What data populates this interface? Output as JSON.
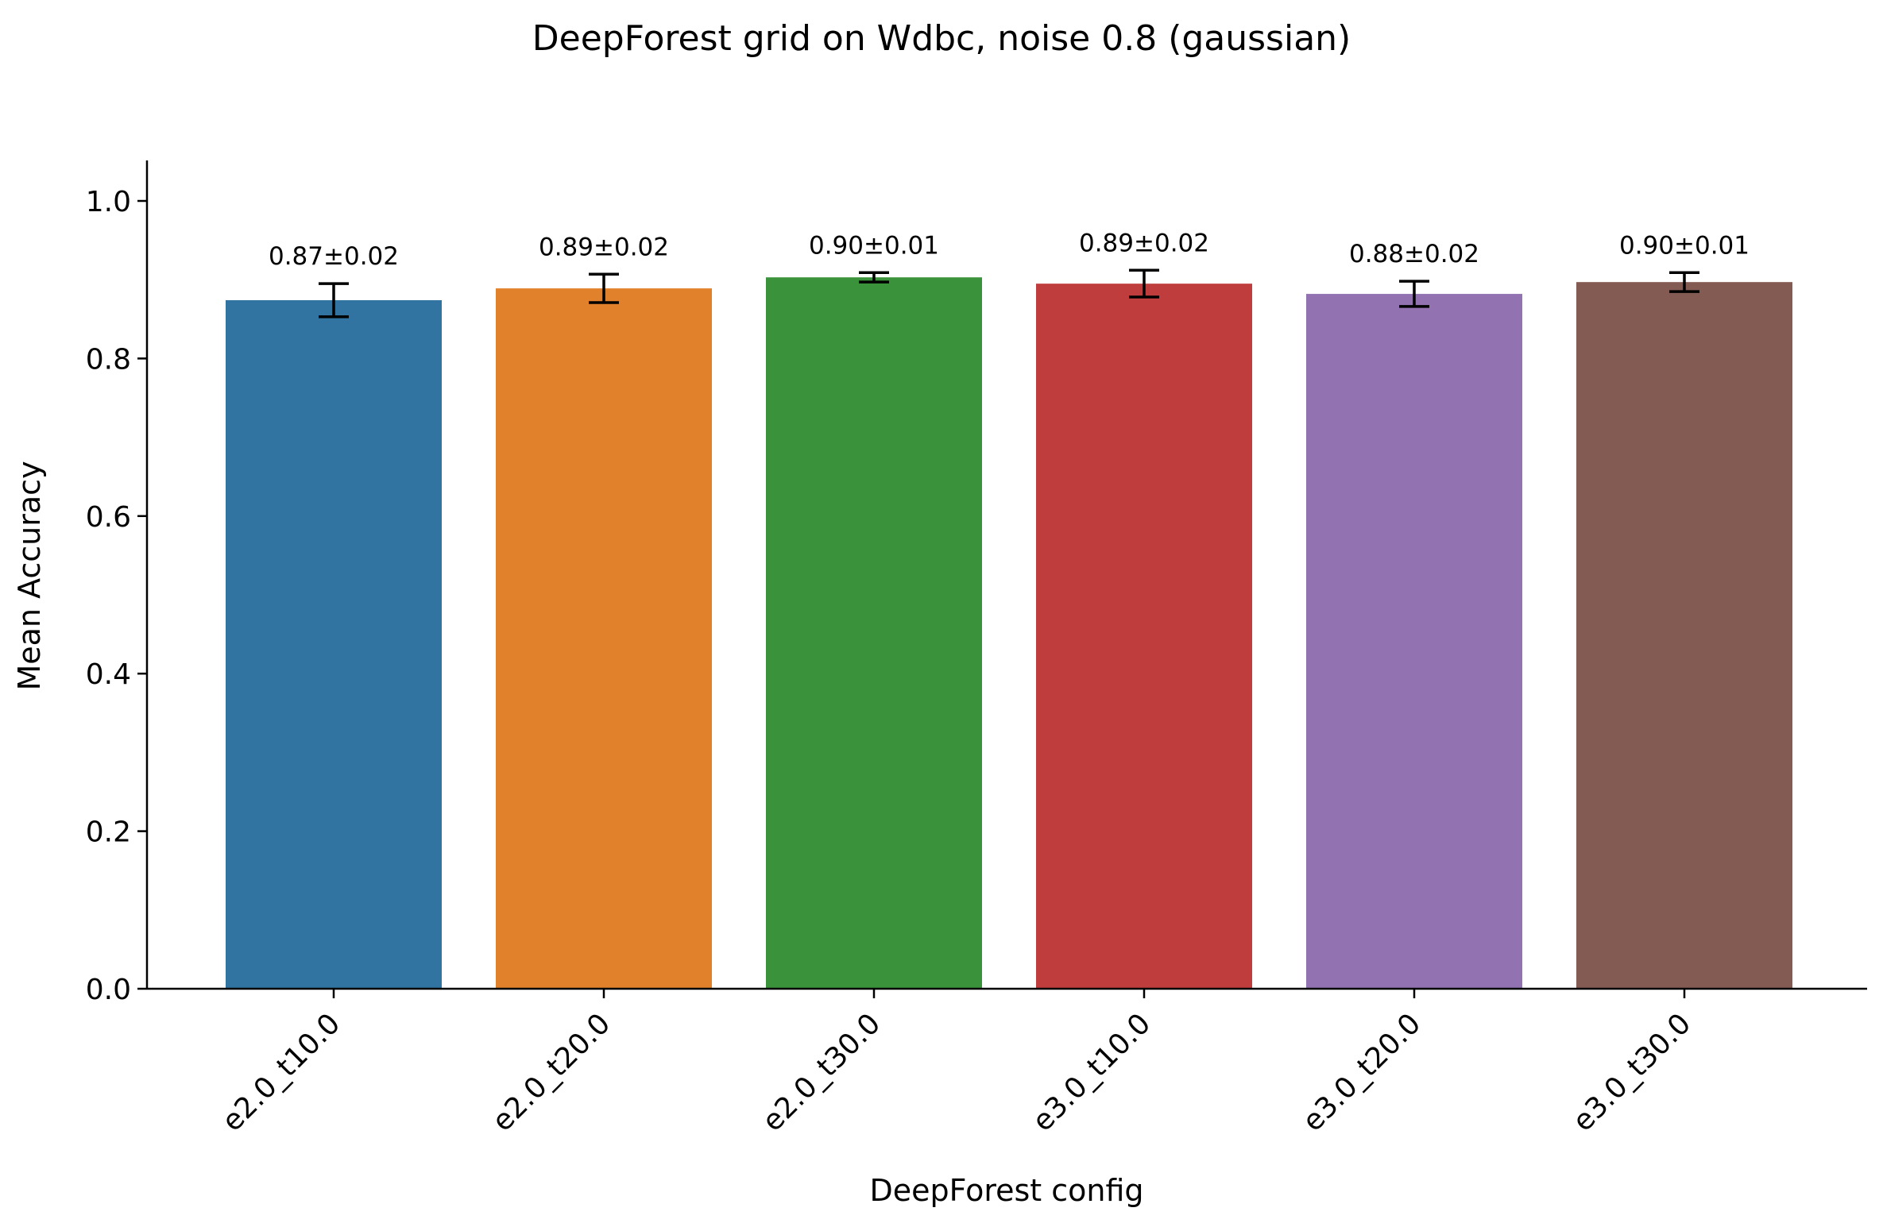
{
  "chart_data": {
    "type": "bar",
    "title": "DeepForest grid on Wdbc, noise 0.8 (gaussian)",
    "xlabel": "DeepForest config",
    "ylabel": "Mean Accuracy",
    "ylim": [
      0,
      1.05
    ],
    "yticks": [
      0.0,
      0.2,
      0.4,
      0.6,
      0.8,
      1.0
    ],
    "ytick_labels": [
      "0.0",
      "0.2",
      "0.4",
      "0.6",
      "0.8",
      "1.0"
    ],
    "categories": [
      "e2.0_t10.0",
      "e2.0_t20.0",
      "e2.0_t30.0",
      "e3.0_t10.0",
      "e3.0_t20.0",
      "e3.0_t30.0"
    ],
    "values": [
      0.874,
      0.889,
      0.903,
      0.895,
      0.882,
      0.897
    ],
    "errors": [
      0.021,
      0.018,
      0.006,
      0.017,
      0.016,
      0.012
    ],
    "data_labels": [
      "0.87±0.02",
      "0.89±0.02",
      "0.90±0.01",
      "0.89±0.02",
      "0.88±0.02",
      "0.90±0.01"
    ],
    "colors": [
      "#3274a1",
      "#e1812c",
      "#3a923a",
      "#c03d3e",
      "#9372b2",
      "#845b53"
    ],
    "grid": false,
    "legend": "none"
  }
}
